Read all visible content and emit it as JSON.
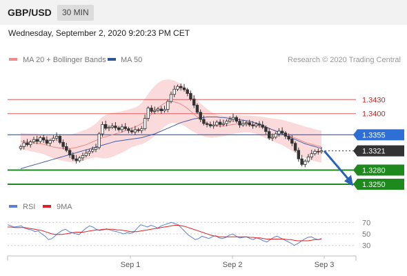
{
  "header": {
    "pair": "GBP/USD",
    "timeframe": "30 MIN"
  },
  "datetime": "Wednesday, September 2, 2020 9:20:23 PM CET",
  "legend": {
    "ma20_label": "MA 20 + Bollinger Bands",
    "ma50_label": "MA 50",
    "ma20_color": "#f08c8c",
    "ma50_color": "#2f5597",
    "copyright": "Research © 2020 Trading Central"
  },
  "rsi_legend": {
    "rsi_label": "RSI",
    "ma_label": "9MA",
    "rsi_color": "#5b7fd6",
    "ma_color": "#e02020"
  },
  "chart_data": {
    "type": "candlestick",
    "ylim": [
      1.3225,
      1.3495
    ],
    "x_ticks": [
      "Sep 1",
      "Sep 2",
      "Sep 3"
    ],
    "levels": [
      {
        "value": 1.343,
        "label": "1.3430",
        "kind": "resistance",
        "color": "#e05a5a"
      },
      {
        "value": 1.34,
        "label": "1.3400",
        "kind": "resistance",
        "color": "#e05a5a"
      },
      {
        "value": 1.3355,
        "label": "1.3355",
        "kind": "pivot",
        "color": "#2e6fd6"
      },
      {
        "value": 1.3321,
        "label": "1.3321",
        "kind": "last",
        "color": "#333333"
      },
      {
        "value": 1.328,
        "label": "1.3280",
        "kind": "support",
        "color": "#1e8a1e"
      },
      {
        "value": 1.325,
        "label": "1.3250",
        "kind": "support",
        "color": "#1e8a1e"
      }
    ],
    "arrow": {
      "from": 1.3321,
      "to": 1.3255,
      "color": "#2b62b8"
    },
    "closes": [
      1.333,
      1.3338,
      1.3334,
      1.334,
      1.3345,
      1.3341,
      1.3349,
      1.3344,
      1.3337,
      1.3343,
      1.3348,
      1.3352,
      1.3339,
      1.333,
      1.3322,
      1.3312,
      1.3304,
      1.33,
      1.3306,
      1.3311,
      1.3316,
      1.332,
      1.3324,
      1.3328,
      1.3357,
      1.3377,
      1.3369,
      1.3371,
      1.3374,
      1.337,
      1.3366,
      1.3372,
      1.3368,
      1.3364,
      1.3361,
      1.3366,
      1.3364,
      1.3368,
      1.339,
      1.3412,
      1.3405,
      1.3407,
      1.341,
      1.3406,
      1.3409,
      1.3426,
      1.3441,
      1.3452,
      1.3458,
      1.3455,
      1.3451,
      1.3443,
      1.3431,
      1.3418,
      1.3403,
      1.3388,
      1.3379,
      1.3377,
      1.3374,
      1.3376,
      1.3382,
      1.3377,
      1.3379,
      1.3384,
      1.3388,
      1.3392,
      1.3384,
      1.3376,
      1.3379,
      1.3381,
      1.3376,
      1.3374,
      1.3378,
      1.3376,
      1.3371,
      1.3362,
      1.3348,
      1.335,
      1.3357,
      1.3363,
      1.3359,
      1.3352,
      1.3346,
      1.3337,
      1.3322,
      1.3304,
      1.3292,
      1.3299,
      1.3308,
      1.3315,
      1.332,
      1.3319,
      1.3321
    ],
    "ma20": [
      1.3341,
      1.3341,
      1.334,
      1.3339,
      1.3338,
      1.3337,
      1.3336,
      1.3335,
      1.3333,
      1.3331,
      1.3329,
      1.3328,
      1.3327,
      1.3327,
      1.3326,
      1.3326,
      1.3327,
      1.3328,
      1.333,
      1.3332,
      1.3334,
      1.3337,
      1.334,
      1.3343,
      1.3346,
      1.3349,
      1.3351,
      1.3353,
      1.3355,
      1.3357,
      1.3359,
      1.3361,
      1.3364,
      1.3367,
      1.337,
      1.3372,
      1.3375,
      1.3379,
      1.3385,
      1.3392,
      1.3399,
      1.3406,
      1.3412,
      1.3418,
      1.3422,
      1.3425,
      1.3426,
      1.3425,
      1.3423,
      1.342,
      1.3416,
      1.3411,
      1.3405,
      1.3399,
      1.3393,
      1.3388,
      1.3384,
      1.338,
      1.3377,
      1.3375,
      1.3374,
      1.3374,
      1.3374,
      1.3375,
      1.3376,
      1.3377,
      1.3378,
      1.3378,
      1.3378,
      1.3378,
      1.3378,
      1.3377,
      1.3376,
      1.3374,
      1.3372,
      1.337,
      1.3368,
      1.3366,
      1.3364,
      1.3362,
      1.336,
      1.3357,
      1.3354,
      1.3351,
      1.3348,
      1.3345,
      1.3342,
      1.3339,
      1.3337,
      1.3335,
      1.3333,
      1.3331,
      1.333
    ],
    "ma50": [
      1.3283,
      1.3285,
      1.3287,
      1.3289,
      1.3291,
      1.3293,
      1.3295,
      1.3297,
      1.3299,
      1.3301,
      1.3303,
      1.3305,
      1.3307,
      1.3309,
      1.3311,
      1.3313,
      1.3315,
      1.3317,
      1.3319,
      1.3321,
      1.3323,
      1.3325,
      1.3327,
      1.3329,
      1.3331,
      1.3333,
      1.3335,
      1.3337,
      1.3339,
      1.3341,
      1.3342,
      1.3343,
      1.3344,
      1.3345,
      1.3346,
      1.3347,
      1.3348,
      1.3349,
      1.3351,
      1.3353,
      1.3355,
      1.3357,
      1.336,
      1.3363,
      1.3366,
      1.3369,
      1.3372,
      1.3375,
      1.3378,
      1.3381,
      1.3383,
      1.3385,
      1.3387,
      1.3389,
      1.339,
      1.3391,
      1.3392,
      1.3393,
      1.3393,
      1.3393,
      1.3393,
      1.3392,
      1.3392,
      1.3391,
      1.339,
      1.3389,
      1.3388,
      1.3387,
      1.3386,
      1.3385,
      1.3384,
      1.3382,
      1.338,
      1.3378,
      1.3375,
      1.3372,
      1.3369,
      1.3366,
      1.3363,
      1.336,
      1.3357,
      1.3354,
      1.3351,
      1.3348,
      1.3345,
      1.3342,
      1.3339,
      1.3336,
      1.3334,
      1.3332,
      1.333,
      1.3328,
      1.3326
    ],
    "bb_width": [
      0.0018,
      0.0018,
      0.0018,
      0.0019,
      0.0019,
      0.002,
      0.002,
      0.0021,
      0.0022,
      0.0023,
      0.0024,
      0.0025,
      0.0026,
      0.0027,
      0.0028,
      0.0029,
      0.003,
      0.0031,
      0.0031,
      0.0032,
      0.0032,
      0.0033,
      0.0034,
      0.0036,
      0.004,
      0.0044,
      0.0046,
      0.0047,
      0.0047,
      0.0046,
      0.0045,
      0.0044,
      0.0043,
      0.0042,
      0.0041,
      0.0041,
      0.0042,
      0.0044,
      0.0047,
      0.005,
      0.0052,
      0.0053,
      0.0053,
      0.0052,
      0.005,
      0.0048,
      0.0046,
      0.0045,
      0.0044,
      0.0043,
      0.0042,
      0.0041,
      0.004,
      0.0038,
      0.0036,
      0.0034,
      0.0032,
      0.003,
      0.0028,
      0.0026,
      0.0024,
      0.0023,
      0.0022,
      0.0021,
      0.002,
      0.002,
      0.0019,
      0.0019,
      0.0018,
      0.0018,
      0.0018,
      0.0018,
      0.0019,
      0.002,
      0.0021,
      0.0022,
      0.0023,
      0.0024,
      0.0025,
      0.0026,
      0.0027,
      0.0028,
      0.0029,
      0.003,
      0.0031,
      0.0032,
      0.0033,
      0.0033,
      0.0034,
      0.0034,
      0.0034,
      0.0034,
      0.0034
    ],
    "rsi": {
      "ylim": [
        20,
        80
      ],
      "ticks": [
        "70",
        "50",
        "30"
      ],
      "tick_values": [
        70,
        50,
        30
      ],
      "values": [
        66,
        64,
        62,
        63,
        64,
        60,
        58,
        57,
        54,
        55,
        50,
        46,
        40,
        42,
        47,
        52,
        56,
        58,
        54,
        52,
        50,
        49,
        55,
        60,
        64,
        62,
        58,
        56,
        57,
        59,
        57,
        55,
        54,
        52,
        50,
        52,
        51,
        53,
        60,
        66,
        64,
        62,
        65,
        63,
        60,
        64,
        66,
        68,
        70,
        68,
        66,
        60,
        54,
        48,
        44,
        40,
        42,
        46,
        44,
        42,
        45,
        47,
        43,
        42,
        44,
        48,
        50,
        46,
        43,
        44,
        45,
        42,
        40,
        43,
        41,
        38,
        36,
        40,
        44,
        46,
        43,
        40,
        37,
        34,
        30,
        33,
        37,
        41,
        44,
        45,
        42,
        40,
        42
      ],
      "ma9": [
        62,
        62,
        61,
        61,
        61,
        61,
        60,
        59,
        58,
        57,
        56,
        54,
        52,
        50,
        49,
        49,
        49,
        50,
        51,
        52,
        53,
        53,
        53,
        54,
        55,
        56,
        57,
        57,
        58,
        58,
        58,
        58,
        57,
        57,
        56,
        55,
        54,
        54,
        54,
        55,
        56,
        57,
        58,
        59,
        60,
        61,
        62,
        63,
        64,
        65,
        65,
        64,
        63,
        61,
        59,
        57,
        55,
        53,
        51,
        49,
        47,
        46,
        45,
        45,
        45,
        45,
        45,
        45,
        45,
        45,
        45,
        44,
        44,
        43,
        43,
        42,
        41,
        41,
        41,
        41,
        41,
        41,
        40,
        40,
        39,
        38,
        38,
        38,
        38,
        39,
        40,
        40,
        41
      ]
    }
  }
}
